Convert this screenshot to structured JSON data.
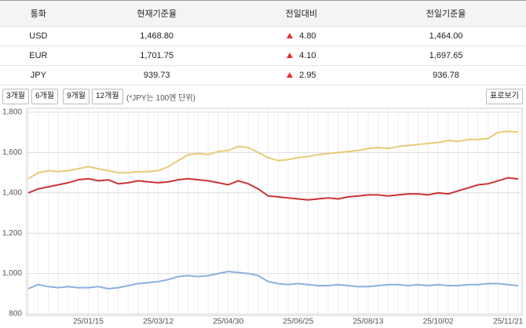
{
  "table": {
    "headers": [
      "통화",
      "현재기준율",
      "전일대비",
      "전일기준율"
    ],
    "rows": [
      [
        "USD",
        "1,468.80",
        "4.80",
        "1,464.00"
      ],
      [
        "EUR",
        "1,701.75",
        "4.10",
        "1,697.65"
      ],
      [
        "JPY",
        "939.73",
        "2.95",
        "936.78"
      ]
    ]
  },
  "controls": {
    "periods": [
      "3개월",
      "6개월",
      "9개월",
      "12개월"
    ],
    "note": "(*JPY는 100엔 단위)",
    "table_view": "표로보기"
  },
  "chart_data": {
    "type": "line",
    "categories": [
      null,
      null,
      null,
      null,
      null,
      null,
      "25/01/15",
      null,
      null,
      null,
      null,
      null,
      null,
      "25/03/12",
      null,
      null,
      null,
      null,
      null,
      null,
      "25/04/30",
      null,
      null,
      null,
      null,
      null,
      null,
      "25/06/25",
      null,
      null,
      null,
      null,
      null,
      null,
      "25/08/13",
      null,
      null,
      null,
      null,
      null,
      null,
      "25/10/02",
      null,
      null,
      null,
      null,
      null,
      null,
      "25/11/21",
      null
    ],
    "ylim": [
      800,
      1800
    ],
    "yticks": [
      800,
      {
        "value": 1000,
        "label": "1,000"
      },
      {
        "value": 1200,
        "label": "1,200"
      },
      {
        "value": 1400,
        "label": "1,400"
      },
      {
        "value": 1600,
        "label": "1,600"
      },
      {
        "value": 1800,
        "label": "1,800"
      }
    ],
    "grid": true,
    "series": [
      {
        "color": "#cc3333",
        "values": [
          1400,
          1420,
          1430,
          1440,
          1450,
          1465,
          1470,
          1460,
          1465,
          1445,
          1450,
          1460,
          1455,
          1450,
          1455,
          1465,
          1470,
          1465,
          1460,
          1450,
          1440,
          1460,
          1445,
          1420,
          1385,
          1380,
          1375,
          1370,
          1365,
          1370,
          1375,
          1370,
          1380,
          1385,
          1390,
          1390,
          1385,
          1390,
          1395,
          1395,
          1390,
          1400,
          1395,
          1410,
          1425,
          1440,
          1445,
          1460,
          1475,
          1468.8
        ]
      },
      {
        "color": "#e6cc77",
        "values": [
          1470,
          1500,
          1510,
          1505,
          1510,
          1520,
          1530,
          1520,
          1510,
          1500,
          1500,
          1505,
          1505,
          1510,
          1530,
          1560,
          1590,
          1595,
          1590,
          1605,
          1610,
          1630,
          1625,
          1600,
          1575,
          1560,
          1565,
          1575,
          1580,
          1590,
          1595,
          1600,
          1605,
          1610,
          1620,
          1625,
          1620,
          1630,
          1635,
          1640,
          1645,
          1650,
          1660,
          1655,
          1665,
          1665,
          1670,
          1700,
          1705,
          1701.75
        ]
      },
      {
        "color": "#8cb0e0",
        "values": [
          925,
          945,
          935,
          930,
          935,
          930,
          930,
          935,
          925,
          930,
          940,
          950,
          955,
          960,
          970,
          985,
          990,
          985,
          990,
          1000,
          1010,
          1005,
          1000,
          990,
          960,
          950,
          945,
          950,
          945,
          940,
          940,
          945,
          940,
          935,
          935,
          940,
          945,
          945,
          940,
          945,
          940,
          945,
          940,
          940,
          945,
          945,
          950,
          950,
          945,
          939.73
        ]
      }
    ]
  }
}
